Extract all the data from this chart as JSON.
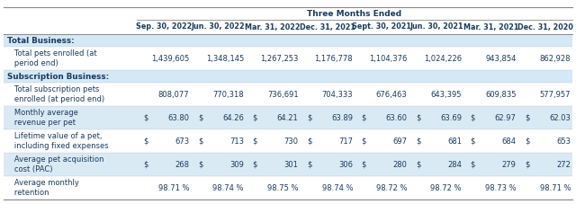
{
  "title": "Three Months Ended",
  "columns": [
    "Sep. 30, 2022",
    "Jun. 30, 2022",
    "Mar. 31, 2022",
    "Dec. 31, 2021",
    "Sept. 30, 2021",
    "Jun. 30, 2021",
    "Mar. 31, 2021",
    "Dec. 31, 2020"
  ],
  "rows": [
    {
      "label": "Total Business:",
      "is_section_header": true,
      "values": [
        "",
        "",
        "",
        "",
        "",
        "",
        "",
        ""
      ],
      "has_dollar": [
        false,
        false,
        false,
        false,
        false,
        false,
        false,
        false
      ]
    },
    {
      "label": "   Total pets enrolled (at\n   period end)",
      "is_section_header": false,
      "values": [
        "1,439,605",
        "1,348,145",
        "1,267,253",
        "1,176,778",
        "1,104,376",
        "1,024,226",
        "943,854",
        "862,928"
      ],
      "has_dollar": [
        false,
        false,
        false,
        false,
        false,
        false,
        false,
        false
      ],
      "bg_idx": 0
    },
    {
      "label": "Subscription Business:",
      "is_section_header": true,
      "values": [
        "",
        "",
        "",
        "",
        "",
        "",
        "",
        ""
      ],
      "has_dollar": [
        false,
        false,
        false,
        false,
        false,
        false,
        false,
        false
      ]
    },
    {
      "label": "   Total subscription pets\n   enrolled (at period end)",
      "is_section_header": false,
      "values": [
        "808,077",
        "770,318",
        "736,691",
        "704,333",
        "676,463",
        "643,395",
        "609,835",
        "577,957"
      ],
      "has_dollar": [
        false,
        false,
        false,
        false,
        false,
        false,
        false,
        false
      ],
      "bg_idx": 0
    },
    {
      "label": "   Monthly average\n   revenue per pet",
      "is_section_header": false,
      "values": [
        "63.80",
        "64.26",
        "64.21",
        "63.89",
        "63.60",
        "63.69",
        "62.97",
        "62.03"
      ],
      "has_dollar": [
        true,
        true,
        true,
        true,
        true,
        true,
        true,
        true
      ],
      "bg_idx": 1
    },
    {
      "label": "   Lifetime value of a pet,\n   including fixed expenses",
      "is_section_header": false,
      "values": [
        "673",
        "713",
        "730",
        "717",
        "697",
        "681",
        "684",
        "653"
      ],
      "has_dollar": [
        true,
        true,
        true,
        true,
        true,
        true,
        true,
        true
      ],
      "bg_idx": 0
    },
    {
      "label": "   Average pet acquisition\n   cost (PAC)",
      "is_section_header": false,
      "values": [
        "268",
        "309",
        "301",
        "306",
        "280",
        "284",
        "279",
        "272"
      ],
      "has_dollar": [
        true,
        true,
        true,
        true,
        true,
        true,
        true,
        true
      ],
      "bg_idx": 1
    },
    {
      "label": "   Average monthly\n   retention",
      "is_section_header": false,
      "values": [
        "98.71 %",
        "98.74 %",
        "98.75 %",
        "98.74 %",
        "98.72 %",
        "98.72 %",
        "98.73 %",
        "98.71 %"
      ],
      "has_dollar": [
        false,
        false,
        false,
        false,
        false,
        false,
        false,
        false
      ],
      "bg_idx": 0
    }
  ],
  "section_header_bg": "#d4e8f5",
  "row_bg": [
    "#ffffff",
    "#daeaf5"
  ],
  "text_color": "#1a3a5c",
  "border_color": "#888888",
  "title_fontsize": 6.5,
  "col_header_fontsize": 5.8,
  "data_fontsize": 6.0,
  "section_header_fontsize": 6.3
}
